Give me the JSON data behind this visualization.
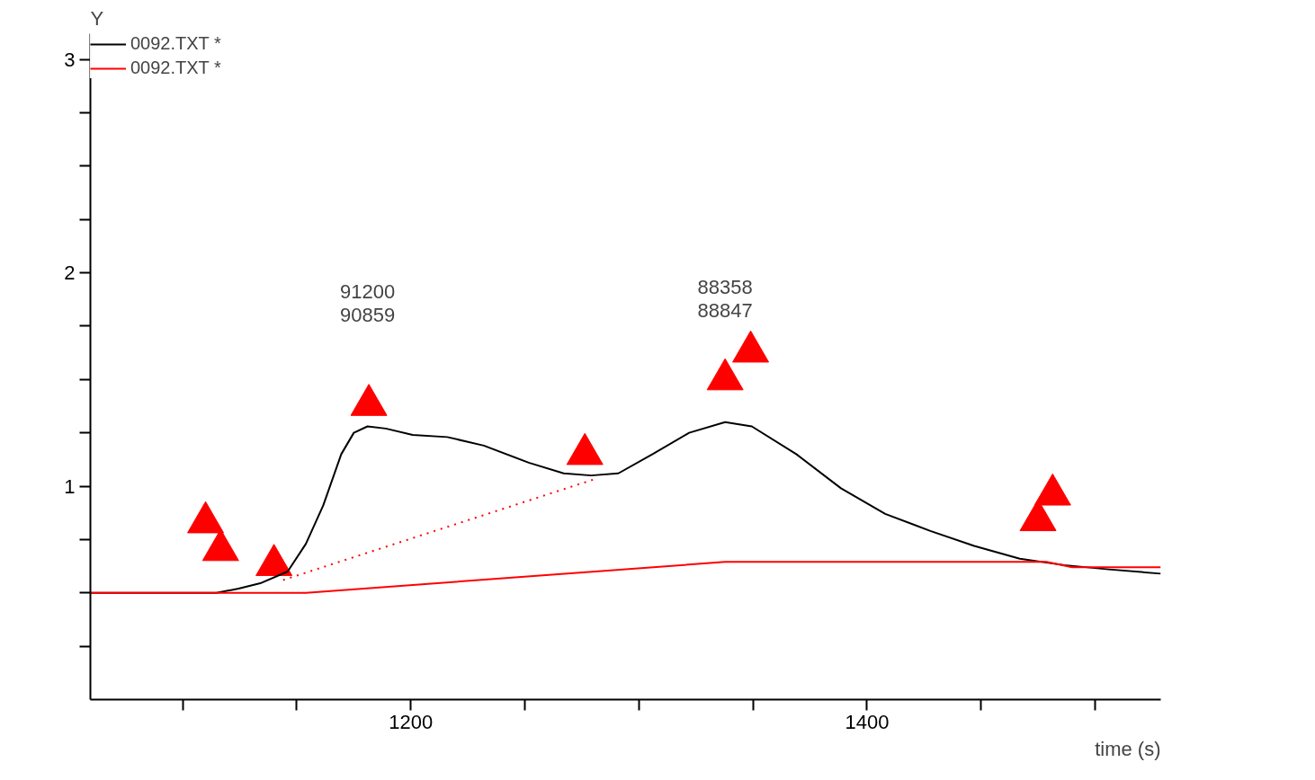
{
  "chart_data": {
    "type": "line",
    "xlabel": "time (s)",
    "ylabel": "Y",
    "xlim": [
      1059.5,
      1528.8
    ],
    "ylim": [
      0,
      3.12
    ],
    "xticks": [
      {
        "value": 1100,
        "label": null
      },
      {
        "value": 1150,
        "label": null
      },
      1200,
      {
        "value": 1250,
        "label": null
      },
      {
        "value": 1300,
        "label": null
      },
      {
        "value": 1350,
        "label": null
      },
      1400,
      {
        "value": 1450,
        "label": null
      },
      {
        "value": 1500,
        "label": null
      }
    ],
    "yticks": [
      {
        "value": 0.25,
        "label": null
      },
      {
        "value": 0.5,
        "label": null
      },
      {
        "value": 0.75,
        "label": null
      },
      1,
      {
        "value": 1.25,
        "label": null
      },
      {
        "value": 1.5,
        "label": null
      },
      {
        "value": 1.75,
        "label": null
      },
      2,
      {
        "value": 2.25,
        "label": null
      },
      {
        "value": 2.5,
        "label": null
      },
      {
        "value": 2.75,
        "label": null
      },
      3
    ],
    "grid": false,
    "legend": "top left",
    "series": [
      {
        "name": "0092.TXT *",
        "color": "#000000",
        "line_style": "solid",
        "x": [
          1059.5,
          1114.7,
          1124.5,
          1134,
          1146,
          1154,
          1161.6,
          1169.5,
          1175,
          1181,
          1189,
          1200.8,
          1216,
          1232,
          1251.7,
          1267,
          1279,
          1291,
          1306,
          1322,
          1337.8,
          1349.5,
          1369,
          1388.6,
          1408,
          1427.8,
          1447,
          1467,
          1486.5,
          1506,
          1528.8
        ],
        "values": [
          0.5,
          0.5,
          0.52,
          0.545,
          0.6,
          0.73,
          0.91,
          1.15,
          1.25,
          1.28,
          1.27,
          1.24,
          1.23,
          1.19,
          1.11,
          1.06,
          1.05,
          1.06,
          1.15,
          1.25,
          1.3,
          1.28,
          1.15,
          0.99,
          0.87,
          0.79,
          0.72,
          0.66,
          0.63,
          0.61,
          0.59
        ]
      },
      {
        "name": "0092.TXT *",
        "color": "#ff0000",
        "type": "line",
        "line_style": "solid",
        "x": [
          1059.5,
          1154,
          1337.8,
          1478.7,
          1490,
          1528.8
        ],
        "values": [
          0.5,
          0.5,
          0.645,
          0.645,
          0.62,
          0.62
        ]
      },
      {
        "color": "#ff0000",
        "type": "line",
        "line_style": "dotted",
        "x": [
          1144,
          1279.8
        ],
        "values": [
          0.56,
          1.03
        ]
      },
      {
        "color": "#ff0000",
        "type": "scatter",
        "marker": "triangle",
        "x": [
          1110,
          1116.6,
          1140,
          1181.6,
          1276.3,
          1337.8,
          1349,
          1475,
          1481.4
        ],
        "values": [
          0.83,
          0.7,
          0.63,
          1.38,
          1.15,
          1.5,
          1.63,
          0.84,
          0.96
        ]
      }
    ],
    "annotations": [
      "91200",
      "90859",
      "88358",
      "88847"
    ]
  }
}
